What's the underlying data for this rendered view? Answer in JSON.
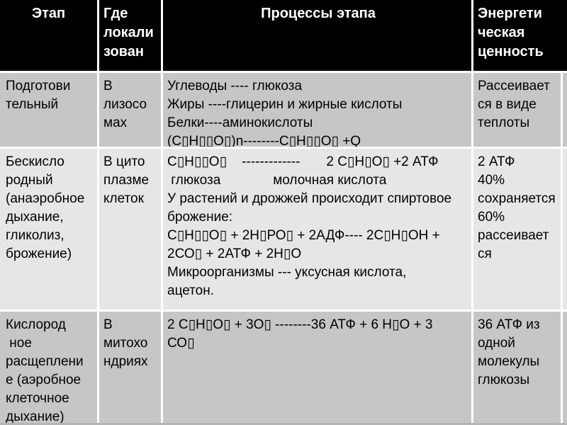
{
  "table": {
    "headers": [
      "Этап",
      "Где\nлокали\nзован",
      "Процессы этапа",
      "Энергети\nческая\nценность"
    ],
    "rows": [
      {
        "stage": "Подготови\nтельный",
        "location": "В\nлизосо\nмах",
        "processes": "Углеводы ---- глюкоза\nЖиры ----глицерин и жирные кислоты\nБелки----аминокислоты\n(С▯Н▯▯О▯)n--------С▯Н▯▯О▯ +Q",
        "energy": "Рассеивает\nся в виде\nтеплоты"
      },
      {
        "stage": "Бескисло\nродный\n(анаэробное\nдыхание,\nгликолиз,\nброжение)",
        "location": "В цито\nплазме\nклеток",
        "processes": "С▯Н▯▯О▯    -------------       2 С▯Н▯О▯ +2 АТФ\n глюкоза              молочная кислота\nУ растений и дрожжей происходит спиртовое\nброжение:\nС▯Н▯▯О▯ + 2Н▯РО▯ + 2АДФ---- 2С▯Н▯ОН +\n2СО▯ + 2АТФ + 2Н▯О\nМикроорганизмы --- уксусная кислота,\nацетон.",
        "energy": "2 АТФ\n40%\nсохраняется\n60%\nрассеивает\nся"
      },
      {
        "stage": "Кислород\n ное\nрасщеплени\nе (аэробное\nклеточное\nдыхание)",
        "location": "В\nмитохо\nндриях",
        "processes": "2 С▯Н▯О▯ + 3О▯ --------36 АТФ + 6 Н▯О + 3\nСО▯",
        "energy": "36 АТФ из\nодной\nмолекулы\nглюкозы"
      }
    ]
  },
  "colors": {
    "header_bg": "#000000",
    "header_text": "#ffffff",
    "row_bg": "#c6c6c6",
    "row_alt_bg": "#e6e6e6",
    "grid_line": "#ffffff",
    "body_text": "#000000",
    "bottom_strip": "#b5b5b5"
  }
}
